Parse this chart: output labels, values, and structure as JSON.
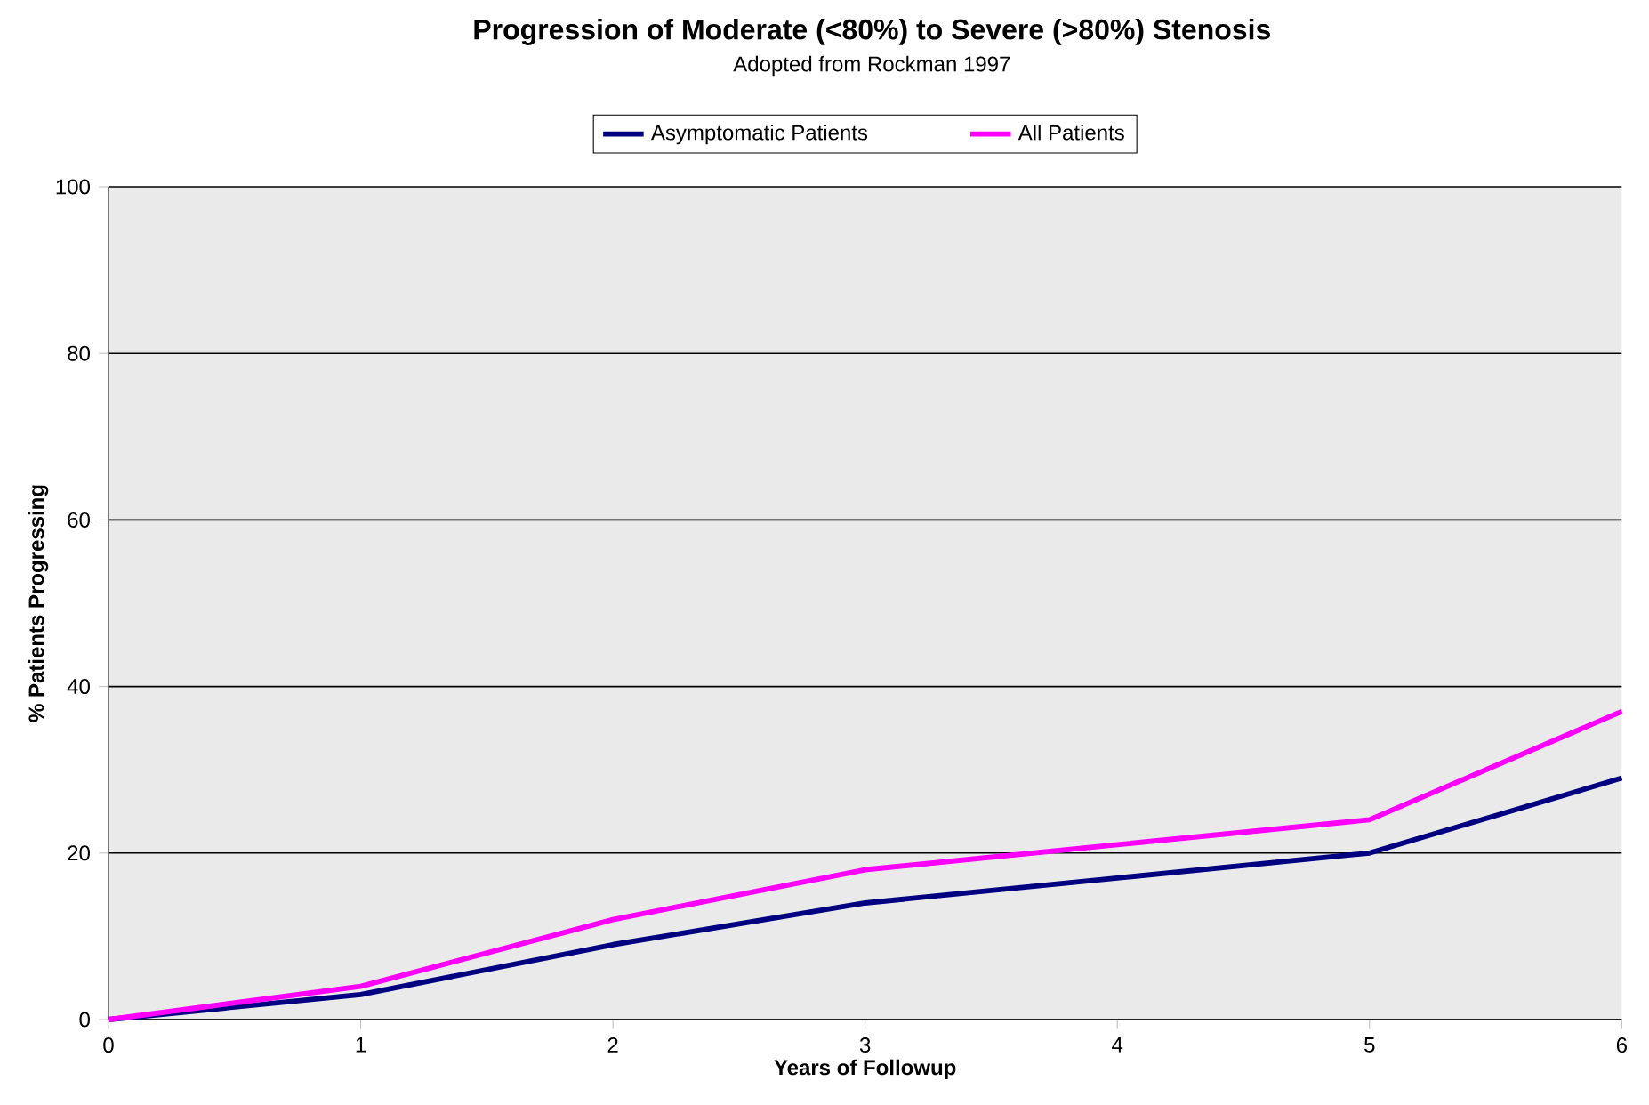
{
  "chart_data": {
    "type": "line",
    "title": "Progression of Moderate (<80%) to Severe (>80%) Stenosis",
    "subtitle": "Adopted from Rockman 1997",
    "xlabel": "Years of Followup",
    "ylabel": "% Patients Progressing",
    "x": [
      0,
      1,
      2,
      3,
      4,
      5,
      6
    ],
    "series": [
      {
        "name": "Asymptomatic Patients",
        "color": "#000080",
        "values": [
          0,
          3,
          9,
          14,
          17,
          20,
          29
        ]
      },
      {
        "name": "All Patients",
        "color": "#ff00ff",
        "values": [
          0,
          4,
          12,
          18,
          21,
          24,
          37
        ]
      }
    ],
    "xlim": [
      0,
      6
    ],
    "ylim": [
      0,
      100
    ],
    "xticks": [
      0,
      1,
      2,
      3,
      4,
      5,
      6
    ],
    "yticks": [
      0,
      20,
      40,
      60,
      80,
      100
    ],
    "grid": "y",
    "legend": "top"
  }
}
